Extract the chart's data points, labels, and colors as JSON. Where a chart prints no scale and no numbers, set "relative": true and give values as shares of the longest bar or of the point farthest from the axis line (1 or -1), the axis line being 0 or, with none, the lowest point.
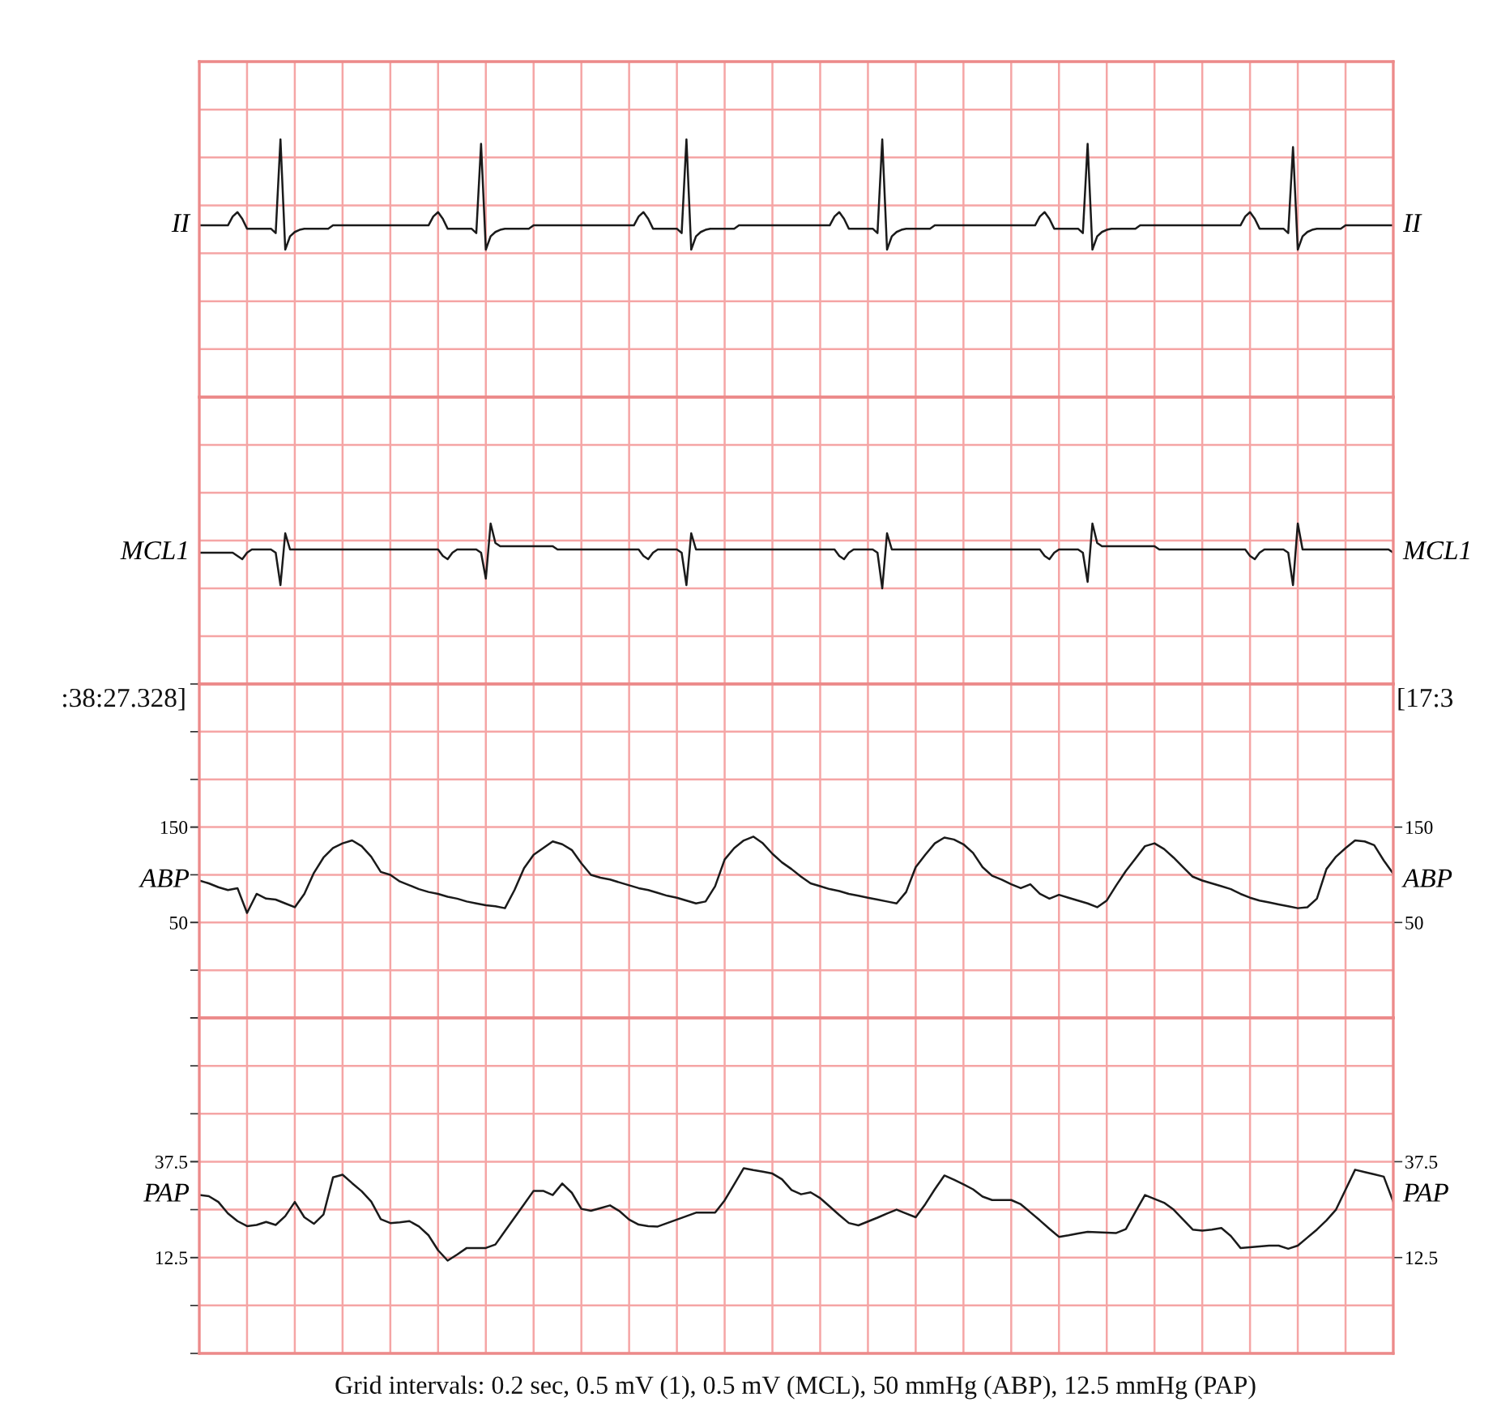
{
  "chart_data": [
    {
      "type": "line",
      "relative": true,
      "ylabel": "II",
      "y2label": "II",
      "tick_labels": false,
      "grid": true,
      "categories": [
        null,
        null,
        null,
        null,
        null,
        null,
        null,
        null,
        null,
        null,
        null,
        null,
        null,
        null,
        null,
        null,
        null,
        null,
        null,
        null,
        null,
        null,
        null,
        null,
        null,
        null,
        null,
        null,
        null,
        null,
        null,
        null,
        null,
        null,
        null,
        null,
        null,
        null,
        null,
        null,
        null,
        null,
        null,
        null,
        null,
        null,
        null,
        null,
        null,
        null,
        null,
        null,
        null,
        null,
        null,
        null,
        null,
        null,
        null,
        null,
        null,
        null,
        null,
        null,
        null,
        null,
        null,
        null,
        null,
        null,
        null,
        null,
        null,
        null,
        null,
        null,
        null,
        null,
        null,
        null,
        null,
        null,
        null,
        null,
        null,
        null,
        null,
        null,
        null,
        null,
        null,
        null,
        null,
        null,
        null,
        null,
        null,
        null,
        null,
        null,
        null,
        null,
        null,
        null,
        null,
        null,
        null,
        null,
        null,
        null,
        null,
        null,
        null,
        null,
        null,
        null,
        null,
        null,
        null,
        null,
        null,
        null,
        null,
        null,
        null,
        null,
        null,
        null,
        null,
        null,
        null,
        null,
        null,
        null,
        null,
        null,
        null,
        null,
        null,
        null,
        null,
        null,
        null,
        null,
        null,
        null,
        null,
        null,
        null,
        null,
        null,
        null,
        null,
        null,
        null,
        null,
        null,
        null,
        null,
        null,
        null,
        null,
        null,
        null,
        null,
        null,
        null,
        null,
        null,
        null,
        null,
        null,
        null,
        null,
        null,
        null,
        null,
        null,
        null,
        null,
        null,
        null,
        null,
        null,
        null,
        null,
        null,
        null,
        null,
        null,
        null,
        null,
        null,
        null,
        null,
        null,
        null,
        null,
        null,
        null,
        null,
        null,
        null,
        null,
        null,
        null,
        null,
        null,
        null,
        null,
        null,
        null,
        null,
        null,
        null,
        null,
        null,
        null,
        null,
        null,
        null,
        null,
        null,
        null,
        null,
        null,
        null,
        null,
        null,
        null,
        null,
        null,
        null,
        null,
        null,
        null,
        null,
        null,
        null,
        null,
        null,
        null,
        null,
        null,
        null,
        null,
        null,
        null,
        null,
        null,
        null
      ],
      "series": [
        {
          "color": "#1a1a1a",
          "values": [
            0.22,
            0.22,
            0.22,
            0.22,
            0.22,
            0.22,
            0.22,
            0.3,
            0.34,
            0.28,
            0.19,
            0.19,
            0.19,
            0.19,
            0.19,
            0.19,
            0.15,
            1,
            0,
            0.12,
            0.16,
            0.18,
            0.19,
            0.19,
            0.19,
            0.19,
            0.19,
            0.19,
            0.22,
            0.22,
            0.22,
            0.22,
            0.22,
            0.22,
            0.22,
            0.22,
            0.22,
            0.22,
            0.22,
            0.22,
            0.22,
            0.22,
            0.22,
            0.22,
            0.22,
            0.22,
            0.22,
            0.22,
            0.22,
            0.3,
            0.34,
            0.28,
            0.19,
            0.19,
            0.19,
            0.19,
            0.19,
            0.19,
            0.15,
            0.96,
            0,
            0.12,
            0.16,
            0.18,
            0.19,
            0.19,
            0.19,
            0.19,
            0.19,
            0.19,
            0.22,
            0.22,
            0.22,
            0.22,
            0.22,
            0.22,
            0.22,
            0.22,
            0.22,
            0.22,
            0.22,
            0.22,
            0.22,
            0.22,
            0.22,
            0.22,
            0.22,
            0.22,
            0.22,
            0.22,
            0.22,
            0.22,
            0.3,
            0.34,
            0.28,
            0.19,
            0.19,
            0.19,
            0.19,
            0.19,
            0.19,
            0.15,
            1,
            0,
            0.12,
            0.16,
            0.18,
            0.19,
            0.19,
            0.19,
            0.19,
            0.19,
            0.19,
            0.22,
            0.22,
            0.22,
            0.22,
            0.22,
            0.22,
            0.22,
            0.22,
            0.22,
            0.22,
            0.22,
            0.22,
            0.22,
            0.22,
            0.22,
            0.22,
            0.22,
            0.22,
            0.22,
            0.22,
            0.3,
            0.34,
            0.28,
            0.19,
            0.19,
            0.19,
            0.19,
            0.19,
            0.19,
            0.15,
            1,
            0,
            0.12,
            0.16,
            0.18,
            0.19,
            0.19,
            0.19,
            0.19,
            0.19,
            0.19,
            0.22,
            0.22,
            0.22,
            0.22,
            0.22,
            0.22,
            0.22,
            0.22,
            0.22,
            0.22,
            0.22,
            0.22,
            0.22,
            0.22,
            0.22,
            0.22,
            0.22,
            0.22,
            0.22,
            0.22,
            0.22,
            0.22,
            0.3,
            0.34,
            0.28,
            0.19,
            0.19,
            0.19,
            0.19,
            0.19,
            0.19,
            0.15,
            0.96,
            0,
            0.12,
            0.16,
            0.18,
            0.19,
            0.19,
            0.19,
            0.19,
            0.19,
            0.19,
            0.22,
            0.22,
            0.22,
            0.22,
            0.22,
            0.22,
            0.22,
            0.22,
            0.22,
            0.22,
            0.22,
            0.22,
            0.22,
            0.22,
            0.22,
            0.22,
            0.22,
            0.22,
            0.22,
            0.22,
            0.22,
            0.22,
            0.3,
            0.34,
            0.28,
            0.19,
            0.19,
            0.19,
            0.19,
            0.19,
            0.19,
            0.15,
            0.93,
            0,
            0.12,
            0.16,
            0.18,
            0.19,
            0.19,
            0.19,
            0.19,
            0.19,
            0.19,
            0.22,
            0.22,
            0.22,
            0.22,
            0.22,
            0.22,
            0.22,
            0.22,
            0.22,
            0.22,
            0.22
          ]
        }
      ]
    },
    {
      "type": "line",
      "relative": true,
      "ylabel": "MCL1",
      "y2label": "MCL1",
      "tick_labels": false,
      "grid": true,
      "categories": [
        null,
        null,
        null,
        null,
        null,
        null,
        null,
        null,
        null,
        null,
        null,
        null,
        null,
        null,
        null,
        null,
        null,
        null,
        null,
        null,
        null,
        null,
        null,
        null,
        null,
        null,
        null,
        null,
        null,
        null,
        null,
        null,
        null,
        null,
        null,
        null,
        null,
        null,
        null,
        null,
        null,
        null,
        null,
        null,
        null,
        null,
        null,
        null,
        null,
        null,
        null,
        null,
        null,
        null,
        null,
        null,
        null,
        null,
        null,
        null,
        null,
        null,
        null,
        null,
        null,
        null,
        null,
        null,
        null,
        null,
        null,
        null,
        null,
        null,
        null,
        null,
        null,
        null,
        null,
        null,
        null,
        null,
        null,
        null,
        null,
        null,
        null,
        null,
        null,
        null,
        null,
        null,
        null,
        null,
        null,
        null,
        null,
        null,
        null,
        null,
        null,
        null,
        null,
        null,
        null,
        null,
        null,
        null,
        null,
        null,
        null,
        null,
        null,
        null,
        null,
        null,
        null,
        null,
        null,
        null,
        null,
        null,
        null,
        null,
        null,
        null,
        null,
        null,
        null,
        null,
        null,
        null,
        null,
        null,
        null,
        null,
        null,
        null,
        null,
        null,
        null,
        null,
        null,
        null,
        null,
        null,
        null,
        null,
        null,
        null,
        null,
        null,
        null,
        null,
        null,
        null,
        null,
        null,
        null,
        null,
        null,
        null,
        null,
        null,
        null,
        null,
        null,
        null,
        null,
        null,
        null,
        null,
        null,
        null,
        null,
        null,
        null,
        null,
        null,
        null,
        null,
        null,
        null,
        null,
        null,
        null,
        null,
        null,
        null,
        null,
        null,
        null,
        null,
        null,
        null,
        null,
        null,
        null,
        null,
        null,
        null,
        null,
        null,
        null,
        null,
        null,
        null,
        null,
        null,
        null,
        null,
        null,
        null,
        null,
        null,
        null,
        null,
        null,
        null,
        null,
        null,
        null,
        null,
        null,
        null,
        null,
        null,
        null,
        null,
        null,
        null,
        null,
        null,
        null,
        null,
        null,
        null,
        null,
        null,
        null,
        null,
        null,
        null,
        null,
        null,
        null,
        null,
        null,
        null,
        null,
        null
      ],
      "series": [
        {
          "color": "#1a1a1a",
          "values": [
            0.55,
            0.55,
            0.55,
            0.55,
            0.55,
            0.55,
            0.55,
            0.55,
            0.5,
            0.45,
            0.55,
            0.6,
            0.6,
            0.6,
            0.6,
            0.6,
            0.55,
            0.05,
            0.85,
            0.6,
            0.6,
            0.6,
            0.6,
            0.6,
            0.6,
            0.6,
            0.6,
            0.6,
            0.6,
            0.6,
            0.6,
            0.6,
            0.6,
            0.6,
            0.6,
            0.6,
            0.6,
            0.6,
            0.6,
            0.6,
            0.6,
            0.6,
            0.6,
            0.6,
            0.6,
            0.6,
            0.6,
            0.6,
            0.6,
            0.6,
            0.6,
            0.5,
            0.45,
            0.55,
            0.6,
            0.6,
            0.6,
            0.6,
            0.6,
            0.55,
            0.15,
            1,
            0.7,
            0.65,
            0.65,
            0.65,
            0.65,
            0.65,
            0.65,
            0.65,
            0.65,
            0.65,
            0.65,
            0.65,
            0.65,
            0.6,
            0.6,
            0.6,
            0.6,
            0.6,
            0.6,
            0.6,
            0.6,
            0.6,
            0.6,
            0.6,
            0.6,
            0.6,
            0.6,
            0.6,
            0.6,
            0.6,
            0.6,
            0.5,
            0.45,
            0.55,
            0.6,
            0.6,
            0.6,
            0.6,
            0.6,
            0.55,
            0.05,
            0.85,
            0.6,
            0.6,
            0.6,
            0.6,
            0.6,
            0.6,
            0.6,
            0.6,
            0.6,
            0.6,
            0.6,
            0.6,
            0.6,
            0.6,
            0.6,
            0.6,
            0.6,
            0.6,
            0.6,
            0.6,
            0.6,
            0.6,
            0.6,
            0.6,
            0.6,
            0.6,
            0.6,
            0.6,
            0.6,
            0.6,
            0.5,
            0.45,
            0.55,
            0.6,
            0.6,
            0.6,
            0.6,
            0.6,
            0.55,
            0,
            0.85,
            0.6,
            0.6,
            0.6,
            0.6,
            0.6,
            0.6,
            0.6,
            0.6,
            0.6,
            0.6,
            0.6,
            0.6,
            0.6,
            0.6,
            0.6,
            0.6,
            0.6,
            0.6,
            0.6,
            0.6,
            0.6,
            0.6,
            0.6,
            0.6,
            0.6,
            0.6,
            0.6,
            0.6,
            0.6,
            0.6,
            0.6,
            0.6,
            0.5,
            0.45,
            0.55,
            0.6,
            0.6,
            0.6,
            0.6,
            0.6,
            0.55,
            0.1,
            1,
            0.7,
            0.65,
            0.65,
            0.65,
            0.65,
            0.65,
            0.65,
            0.65,
            0.65,
            0.65,
            0.65,
            0.65,
            0.65,
            0.6,
            0.6,
            0.6,
            0.6,
            0.6,
            0.6,
            0.6,
            0.6,
            0.6,
            0.6,
            0.6,
            0.6,
            0.6,
            0.6,
            0.6,
            0.6,
            0.6,
            0.6,
            0.6,
            0.5,
            0.45,
            0.55,
            0.6,
            0.6,
            0.6,
            0.6,
            0.6,
            0.55,
            0.05,
            1,
            0.6,
            0.6,
            0.6,
            0.6,
            0.6,
            0.6,
            0.6,
            0.6,
            0.6,
            0.6,
            0.6,
            0.6,
            0.6,
            0.6,
            0.6,
            0.6,
            0.6,
            0.6,
            0.6,
            0.55
          ]
        }
      ]
    },
    {
      "type": "line",
      "ylabel": "ABP",
      "y2label": "ABP",
      "tick_labels": "y",
      "grid": true,
      "ylim": [
        -50,
        300
      ],
      "y2lim": [
        -50,
        300
      ],
      "annotations": [
        ":38:27.328]",
        "[17:3"
      ],
      "categories": [
        null,
        null,
        null,
        null,
        null,
        null,
        null,
        null,
        null,
        null,
        null,
        null,
        null,
        null,
        null,
        null,
        null,
        null,
        null,
        null,
        null,
        null,
        null,
        null,
        null,
        null,
        null,
        null,
        null,
        null,
        null,
        null,
        null,
        null,
        null,
        null,
        null,
        null,
        null,
        null,
        null,
        null,
        null,
        null,
        null,
        null,
        null,
        null,
        null,
        null,
        null,
        null,
        null,
        null,
        null,
        null,
        null,
        null,
        null,
        null,
        null,
        null,
        null,
        null,
        null,
        null,
        null,
        null,
        null,
        null,
        null,
        null,
        null,
        null,
        null,
        null,
        null,
        null,
        null,
        null,
        null,
        null,
        null,
        null,
        null,
        null,
        null,
        null,
        null,
        null,
        null,
        null,
        null,
        null,
        null,
        null,
        null,
        null,
        null,
        null,
        null,
        null,
        null,
        null,
        null,
        null,
        null,
        null,
        null,
        null,
        null,
        null,
        null,
        null,
        null,
        null,
        null,
        null,
        null,
        null,
        null,
        null,
        null,
        null,
        null,
        null
      ],
      "yticks": [
        {
          "value": -50,
          "label": null
        },
        {
          "value": 0,
          "label": null
        },
        50,
        {
          "value": 100,
          "label": null
        },
        150,
        {
          "value": 200,
          "label": null
        },
        {
          "value": 250,
          "label": null
        },
        {
          "value": 300,
          "label": null
        }
      ],
      "y2ticks": [
        {
          "value": -50,
          "label": null
        },
        {
          "value": 0,
          "label": null
        },
        50,
        {
          "value": 100,
          "label": null
        },
        150,
        {
          "value": 200,
          "label": null
        },
        {
          "value": 250,
          "label": null
        },
        {
          "value": 300,
          "label": null
        }
      ],
      "series": [
        {
          "color": "#1a1a1a",
          "values": [
            94,
            91,
            87,
            84,
            86,
            60,
            80,
            75,
            74,
            70,
            66,
            80,
            102,
            118,
            128,
            133,
            136,
            130,
            119,
            103,
            100,
            93,
            89,
            85,
            82,
            80,
            77,
            75,
            72,
            70,
            68,
            67,
            65,
            84,
            107,
            121,
            128,
            135,
            132,
            126,
            112,
            100,
            97,
            95,
            92,
            89,
            86,
            84,
            81,
            78,
            76,
            73,
            70,
            72,
            88,
            116,
            128,
            136,
            140,
            133,
            122,
            113,
            106,
            98,
            91,
            88,
            85,
            83,
            80,
            78,
            76,
            74,
            72,
            70,
            82,
            108,
            121,
            133,
            139,
            137,
            132,
            123,
            108,
            99,
            95,
            90,
            86,
            90,
            80,
            75,
            79,
            76,
            73,
            70,
            66,
            73,
            89,
            104,
            117,
            130,
            133,
            127,
            118,
            108,
            98,
            94,
            91,
            88,
            85,
            80,
            76,
            73,
            71,
            69,
            67,
            65,
            66,
            75,
            106,
            119,
            128,
            136,
            135,
            131,
            115,
            101
          ]
        }
      ]
    },
    {
      "type": "line",
      "ylabel": "PAP",
      "y2label": "PAP",
      "tick_labels": "y",
      "grid": true,
      "ylim": [
        -12.5,
        75
      ],
      "y2lim": [
        -12.5,
        75
      ],
      "categories": [
        null,
        null,
        null,
        null,
        null,
        null,
        null,
        null,
        null,
        null,
        null,
        null,
        null,
        null,
        null,
        null,
        null,
        null,
        null,
        null,
        null,
        null,
        null,
        null,
        null,
        null,
        null,
        null,
        null,
        null,
        null,
        null,
        null,
        null,
        null,
        null,
        null,
        null,
        null,
        null,
        null,
        null,
        null,
        null,
        null,
        null,
        null,
        null,
        null,
        null,
        null,
        null,
        null,
        null,
        null,
        null,
        null,
        null,
        null,
        null,
        null,
        null,
        null,
        null,
        null,
        null,
        null,
        null,
        null,
        null,
        null,
        null,
        null,
        null,
        null,
        null,
        null,
        null,
        null,
        null,
        null,
        null,
        null,
        null,
        null,
        null,
        null,
        null,
        null,
        null,
        null,
        null,
        null,
        null,
        null,
        null,
        null,
        null,
        null,
        null,
        null,
        null,
        null,
        null,
        null,
        null,
        null,
        null,
        null,
        null,
        null,
        null,
        null,
        null,
        null,
        null,
        null,
        null,
        null,
        null,
        null,
        null,
        null,
        null,
        null,
        null
      ],
      "yticks": [
        {
          "value": -12.5,
          "label": null
        },
        {
          "value": 0,
          "label": null
        },
        12.5,
        {
          "value": 25,
          "label": null
        },
        37.5,
        {
          "value": 50,
          "label": null
        },
        {
          "value": 62.5,
          "label": null
        },
        {
          "value": 75,
          "label": null
        }
      ],
      "y2ticks": [
        {
          "value": -12.5,
          "label": null
        },
        {
          "value": 0,
          "label": null
        },
        12.5,
        {
          "value": 25,
          "label": null
        },
        37.5,
        {
          "value": 50,
          "label": null
        },
        {
          "value": 62.5,
          "label": null
        },
        {
          "value": 75,
          "label": null
        }
      ],
      "annotations": [
        "Grid intervals: 0.2 sec, 0.5 mV (1), 0.5 mV (MCL), 50 mmHg (ABP), 12.5 mmHg (PAP)"
      ],
      "series": [
        {
          "color": "#1a1a1a",
          "values": [
            28.8,
            28.5,
            27,
            24,
            22,
            20.7,
            21,
            21.8,
            21,
            23.3,
            27,
            23,
            21.3,
            23.7,
            33.4,
            34.1,
            31.9,
            29.8,
            27.1,
            22.5,
            21.5,
            21.7,
            22,
            20.6,
            18.3,
            14.4,
            11.7,
            13.3,
            15,
            15,
            15,
            15.9,
            19.4,
            22.9,
            26.4,
            29.9,
            29.9,
            28.8,
            31.8,
            29.4,
            25.2,
            24.7,
            25.4,
            26.1,
            24.6,
            22.4,
            21.1,
            20.7,
            20.6,
            21.5,
            22.4,
            23.3,
            24.2,
            24.2,
            24.2,
            27.4,
            31.6,
            35.8,
            35.3,
            34.9,
            34.4,
            32.9,
            30.1,
            29,
            29.5,
            28,
            25.8,
            23.6,
            21.5,
            20.9,
            21.9,
            22.9,
            24,
            25,
            24,
            23,
            26.4,
            30.3,
            33.9,
            32.8,
            31.6,
            30.3,
            28.4,
            27.5,
            27.5,
            27.5,
            26.4,
            24.3,
            22.2,
            20,
            17.9,
            18.3,
            18.8,
            19.2,
            19.1,
            19,
            18.9,
            19.9,
            24.4,
            28.8,
            27.8,
            26.8,
            25,
            22.4,
            19.8,
            19.5,
            19.8,
            20.2,
            18.1,
            15,
            15.2,
            15.4,
            15.6,
            15.6,
            14.8,
            15.6,
            17.7,
            19.8,
            22.2,
            25,
            30.2,
            35.4,
            34.8,
            34.2,
            33.6,
            27
          ]
        }
      ]
    }
  ]
}
